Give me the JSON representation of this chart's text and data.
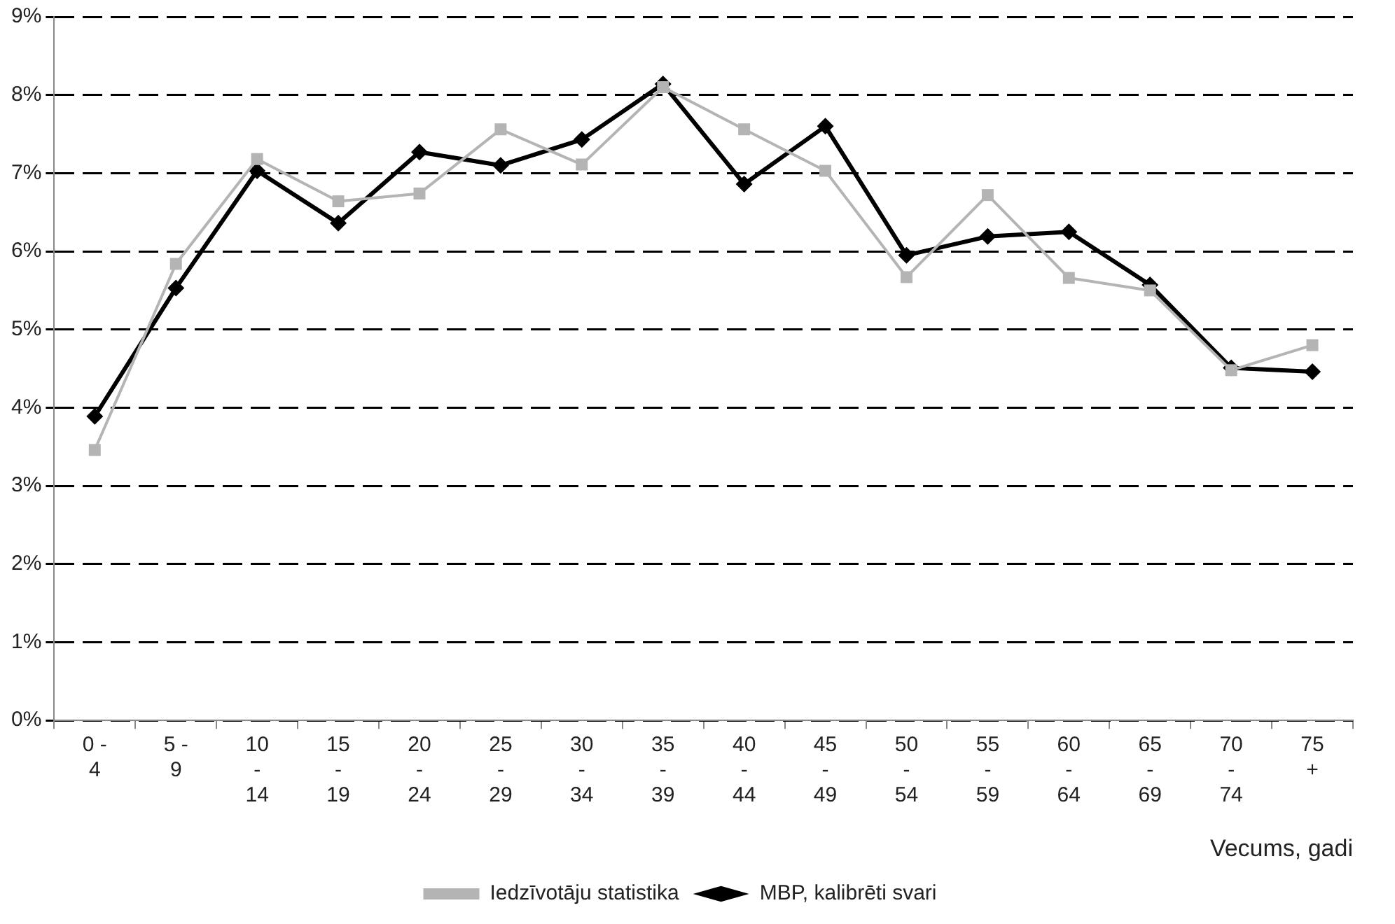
{
  "chart_data": {
    "type": "line",
    "categories": [
      "0 -\n4",
      "5 -\n9",
      "10\n-\n14",
      "15\n-\n19",
      "20\n-\n24",
      "25\n-\n29",
      "30\n-\n34",
      "35\n-\n39",
      "40\n-\n44",
      "45\n-\n49",
      "50\n-\n54",
      "55\n-\n59",
      "60\n-\n64",
      "65\n-\n69",
      "70\n-\n74",
      "75\n+"
    ],
    "series": [
      {
        "name": "Iedzīvotāju statistika",
        "color": "#b4b4b4",
        "marker": "square",
        "values": [
          3.46,
          5.84,
          7.18,
          6.64,
          6.74,
          7.56,
          7.11,
          8.1,
          7.56,
          7.03,
          5.67,
          6.72,
          5.66,
          5.5,
          4.48,
          4.8
        ]
      },
      {
        "name": "MBP, kalibrēti svari",
        "color": "#000000",
        "marker": "diamond",
        "values": [
          3.89,
          5.53,
          7.03,
          6.36,
          7.27,
          7.1,
          7.43,
          8.14,
          6.86,
          7.6,
          5.95,
          6.19,
          6.25,
          5.57,
          4.51,
          4.46
        ]
      }
    ],
    "xlabel": "Vecums, gadi",
    "ylim": [
      0,
      9
    ],
    "yticks": [
      {
        "value": 0,
        "label": "0%"
      },
      {
        "value": 1,
        "label": "1%"
      },
      {
        "value": 2,
        "label": "2%"
      },
      {
        "value": 3,
        "label": "3%"
      },
      {
        "value": 4,
        "label": "4%"
      },
      {
        "value": 5,
        "label": "5%"
      },
      {
        "value": 6,
        "label": "6%"
      },
      {
        "value": 7,
        "label": "7%"
      },
      {
        "value": 8,
        "label": "8%"
      },
      {
        "value": 9,
        "label": "9%"
      }
    ],
    "grid": "y",
    "legend": "bottom",
    "line_style": "solid"
  }
}
